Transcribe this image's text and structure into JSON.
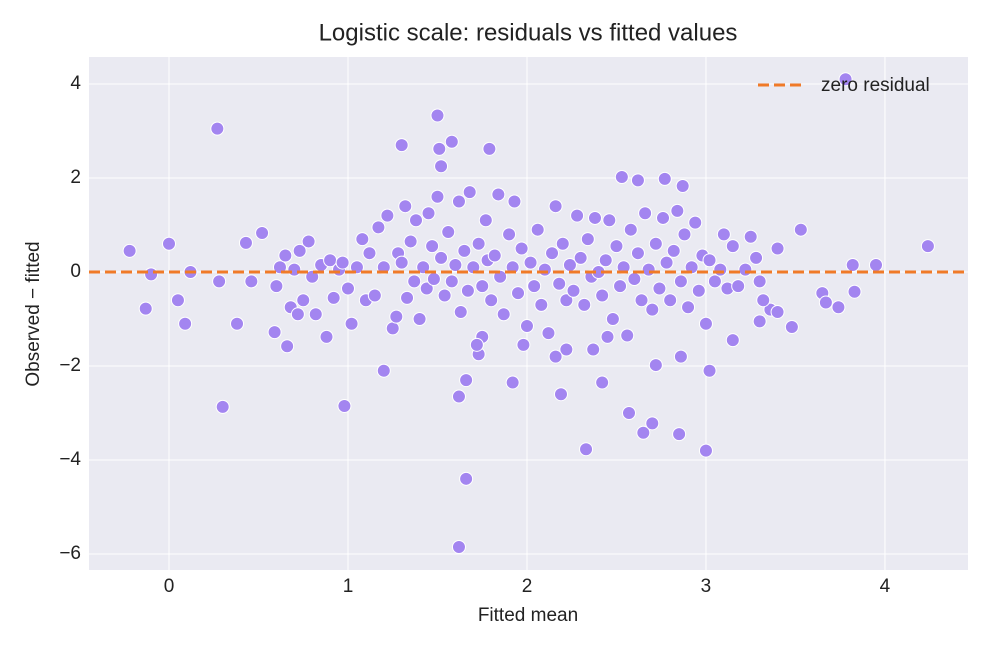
{
  "chart_data": {
    "type": "scatter",
    "title": "Logistic scale: residuals vs fitted values",
    "x_label": "Fitted mean",
    "y_label": "Observed − fitted",
    "color": "#a385f0",
    "x": [
      -0.22,
      -0.13,
      -0.1,
      0,
      0.05,
      0.09,
      0.12,
      0.27,
      0.28,
      0.3,
      0.38,
      0.43,
      0.46,
      0.52,
      0.59,
      0.66,
      0.98,
      1.2,
      1.3,
      1.5,
      1.51,
      1.58,
      1.52,
      1.79,
      1.62,
      1.66,
      1.66,
      1.62,
      1.92,
      2.19,
      2.33,
      2.42,
      2.57,
      2.65,
      2.7,
      2.85,
      3.0,
      2.72,
      2.86,
      3.02,
      2.53,
      2.62,
      2.77,
      2.87,
      3.78,
      4.24,
      3.95,
      3.82,
      3.83,
      3.74,
      3.65,
      3.67,
      3.53,
      3.48,
      3.4,
      3.3,
      3.36,
      3.32,
      3.4,
      3.15,
      2.22,
      2.16,
      1.98,
      1.73,
      1.75,
      2.37,
      2.45,
      0.6,
      0.62,
      0.65,
      0.68,
      0.7,
      0.72,
      0.73,
      0.75,
      0.78,
      0.8,
      0.82,
      0.85,
      0.88,
      0.9,
      0.92,
      0.95,
      0.97,
      1.0,
      1.02,
      1.05,
      1.08,
      1.1,
      1.12,
      1.15,
      1.17,
      1.2,
      1.22,
      1.25,
      1.27,
      1.28,
      1.3,
      1.32,
      1.33,
      1.35,
      1.37,
      1.38,
      1.4,
      1.42,
      1.44,
      1.45,
      1.47,
      1.48,
      1.5,
      1.52,
      1.54,
      1.56,
      1.58,
      1.6,
      1.62,
      1.63,
      1.65,
      1.67,
      1.68,
      1.7,
      1.72,
      1.73,
      1.75,
      1.77,
      1.78,
      1.8,
      1.82,
      1.84,
      1.85,
      1.87,
      1.9,
      1.92,
      1.93,
      1.95,
      1.97,
      2.0,
      2.02,
      2.04,
      2.06,
      2.08,
      2.1,
      2.12,
      2.14,
      2.16,
      2.18,
      2.2,
      2.22,
      2.24,
      2.26,
      2.28,
      2.3,
      2.32,
      2.34,
      2.36,
      2.38,
      2.4,
      2.42,
      2.44,
      2.46,
      2.48,
      2.5,
      2.52,
      2.54,
      2.56,
      2.58,
      2.6,
      2.62,
      2.64,
      2.66,
      2.68,
      2.7,
      2.72,
      2.74,
      2.76,
      2.78,
      2.8,
      2.82,
      2.84,
      2.86,
      2.88,
      2.9,
      2.92,
      2.94,
      2.96,
      2.98,
      3.0,
      3.02,
      3.05,
      3.08,
      3.1,
      3.12,
      3.15,
      3.18,
      3.22,
      3.25,
      3.28,
      3.3
    ],
    "y": [
      0.45,
      -0.78,
      -0.05,
      0.6,
      -0.6,
      -1.1,
      0,
      3.05,
      -0.2,
      -2.87,
      -1.1,
      0.62,
      -0.2,
      0.83,
      -1.28,
      -1.58,
      -2.85,
      -2.1,
      2.7,
      3.33,
      2.62,
      2.77,
      2.25,
      2.62,
      -2.65,
      -2.3,
      -4.4,
      -5.85,
      -2.35,
      -2.6,
      -3.77,
      -2.35,
      -3.0,
      -3.42,
      -3.22,
      -3.45,
      -3.8,
      -1.98,
      -1.8,
      -2.1,
      2.02,
      1.95,
      1.98,
      1.83,
      4.1,
      0.55,
      0.15,
      0.15,
      -0.42,
      -0.75,
      -0.45,
      -0.65,
      0.9,
      -1.17,
      0.5,
      -1.05,
      -0.8,
      -0.6,
      -0.85,
      -1.45,
      -1.65,
      -1.8,
      -1.55,
      -1.75,
      -1.38,
      -1.65,
      -1.38,
      -0.3,
      0.1,
      0.35,
      -0.75,
      0.05,
      -0.9,
      0.45,
      -0.6,
      0.65,
      -0.1,
      -0.9,
      0.15,
      -1.38,
      0.25,
      -0.55,
      0.05,
      0.2,
      -0.35,
      -1.1,
      0.1,
      0.7,
      -0.6,
      0.4,
      -0.5,
      0.95,
      0.1,
      1.2,
      -1.2,
      -0.95,
      0.4,
      0.2,
      1.4,
      -0.55,
      0.65,
      -0.2,
      1.1,
      -1.0,
      0.1,
      -0.35,
      1.25,
      0.55,
      -0.15,
      1.6,
      0.3,
      -0.5,
      0.85,
      -0.2,
      0.15,
      1.5,
      -0.85,
      0.45,
      -0.4,
      1.7,
      0.1,
      -1.55,
      0.6,
      -0.3,
      1.1,
      0.25,
      -0.6,
      0.35,
      1.65,
      -0.1,
      -0.9,
      0.8,
      0.1,
      1.5,
      -0.45,
      0.5,
      -1.15,
      0.2,
      -0.3,
      0.9,
      -0.7,
      0.05,
      -1.3,
      0.4,
      1.4,
      -0.25,
      0.6,
      -0.6,
      0.15,
      -0.4,
      1.2,
      0.3,
      -0.7,
      0.7,
      -0.1,
      1.15,
      0.0,
      -0.5,
      0.25,
      1.1,
      -1.0,
      0.55,
      -0.3,
      0.1,
      -1.35,
      0.9,
      -0.15,
      0.4,
      -0.6,
      1.25,
      0.05,
      -0.8,
      0.6,
      -0.35,
      1.15,
      0.2,
      -0.6,
      0.45,
      1.3,
      -0.2,
      0.8,
      -0.75,
      0.1,
      1.05,
      -0.4,
      0.35,
      -1.1,
      0.25,
      -0.2,
      0.05,
      0.8,
      -0.35,
      0.55,
      -0.3,
      0.05,
      0.75,
      0.3,
      -0.2
    ],
    "reference_line": {
      "name": "zero residual",
      "value": 0,
      "color": "#f07a28"
    },
    "legend": "upper right",
    "grid": true,
    "xlim": [
      -0.447,
      4.464
    ],
    "xticks": [
      0,
      1,
      2,
      3,
      4
    ],
    "ylim": [
      -6.34,
      4.574
    ],
    "yticks": [
      {
        "value": -6,
        "label": "−6"
      },
      {
        "value": -4,
        "label": "−4"
      },
      {
        "value": -2,
        "label": "−2"
      },
      0,
      2,
      4
    ]
  }
}
